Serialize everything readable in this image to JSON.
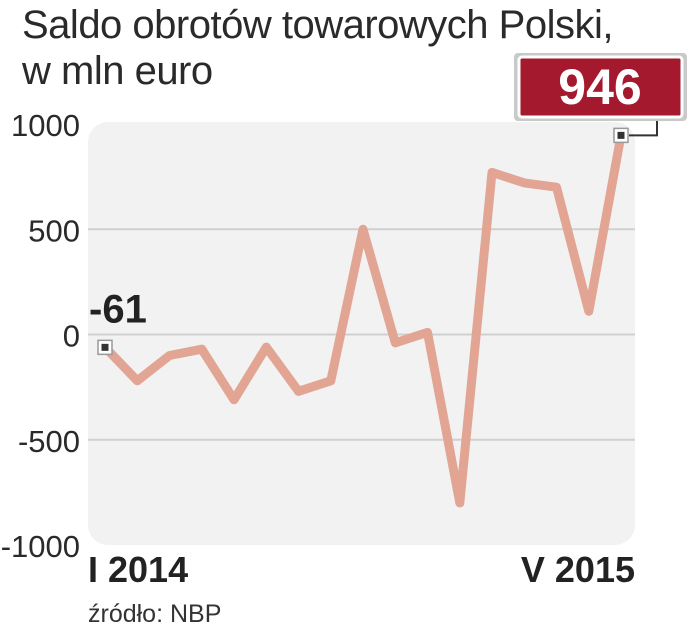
{
  "title_line1": "Saldo obrotów towarowych Polski,",
  "title_line2": "w mln euro",
  "source": "źródło: NBP",
  "colors": {
    "line": "#e3a593",
    "panel": "#f2f2f2",
    "grid": "#d0d0d0",
    "badge": "#a4192d",
    "badge_border": "#ffffff",
    "text": "#222222"
  },
  "chart_data": {
    "type": "line",
    "title": "Saldo obrotów towarowych Polski, w mln euro",
    "ylim": [
      -1000,
      1000
    ],
    "yticks": [
      "1000",
      "500",
      "0",
      "-500",
      "-1000"
    ],
    "ytick_values": [
      1000,
      500,
      0,
      -500,
      -1000
    ],
    "x_start_label": "I 2014",
    "x_end_label": "V 2015",
    "grid": true,
    "series": [
      {
        "values": [
          -61,
          -220,
          -100,
          -70,
          -310,
          -60,
          -270,
          -220,
          500,
          -40,
          10,
          -800,
          770,
          720,
          700,
          110,
          946
        ]
      }
    ],
    "annotations": {
      "first": "-61",
      "last": "946"
    }
  }
}
